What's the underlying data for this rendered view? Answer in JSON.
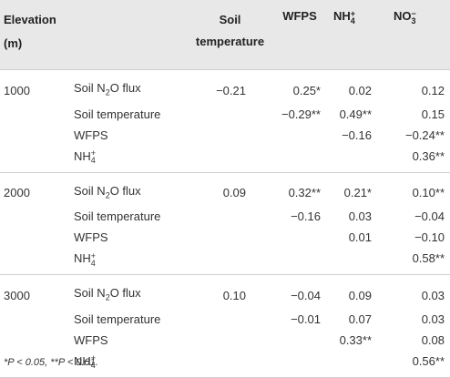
{
  "table": {
    "headers": {
      "elevation": "Elevation (m)",
      "soil_temperature": "Soil temperature",
      "wfps": "WFPS",
      "nh4_base": "NH",
      "nh4_sup": "+",
      "nh4_sub": "4",
      "no3_base": "NO",
      "no3_sup": "−",
      "no3_sub": "3"
    },
    "groups": [
      {
        "elevation": "1000",
        "rows": [
          {
            "var_base": "Soil N",
            "var_sub": "2",
            "var_rest": "O flux",
            "soil_temp": "−0.21",
            "wfps": "0.25*",
            "nh4": "0.02",
            "no3": "0.12"
          },
          {
            "var": "Soil temperature",
            "soil_temp": "",
            "wfps": "−0.29**",
            "nh4": "0.49**",
            "no3": "0.15"
          },
          {
            "var": "WFPS",
            "soil_temp": "",
            "wfps": "",
            "nh4": "−0.16",
            "no3": "−0.24**"
          },
          {
            "var_base": "NH",
            "var_sup": "+",
            "var_sub4": "4",
            "soil_temp": "",
            "wfps": "",
            "nh4": "",
            "no3": "0.36**"
          }
        ]
      },
      {
        "elevation": "2000",
        "rows": [
          {
            "var_base": "Soil N",
            "var_sub": "2",
            "var_rest": "O flux",
            "soil_temp": "0.09",
            "wfps": "0.32**",
            "nh4": "0.21*",
            "no3": "0.10**"
          },
          {
            "var": "Soil temperature",
            "soil_temp": "",
            "wfps": "−0.16",
            "nh4": "0.03",
            "no3": "−0.04"
          },
          {
            "var": "WFPS",
            "soil_temp": "",
            "wfps": "",
            "nh4": "0.01",
            "no3": "−0.10"
          },
          {
            "var_base": "NH",
            "var_sup": "+",
            "var_sub4": "4",
            "soil_temp": "",
            "wfps": "",
            "nh4": "",
            "no3": "0.58**"
          }
        ]
      },
      {
        "elevation": "3000",
        "rows": [
          {
            "var_base": "Soil N",
            "var_sub": "2",
            "var_rest": "O flux",
            "soil_temp": "0.10",
            "wfps": "−0.04",
            "nh4": "0.09",
            "no3": "0.03"
          },
          {
            "var": "Soil temperature",
            "soil_temp": "",
            "wfps": "−0.01",
            "nh4": "0.07",
            "no3": "0.03"
          },
          {
            "var": "WFPS",
            "soil_temp": "",
            "wfps": "",
            "nh4": "0.33**",
            "no3": "0.08"
          },
          {
            "var_base": "NH",
            "var_sup": "+",
            "var_sub4": "4",
            "soil_temp": "",
            "wfps": "",
            "nh4": "",
            "no3": "0.56**"
          }
        ]
      }
    ],
    "footnote": "*P < 0.05, **P < 0.01."
  },
  "colors": {
    "header_bg": "#e8e8e8",
    "rule": "#cfcfcf",
    "text": "#333333"
  }
}
